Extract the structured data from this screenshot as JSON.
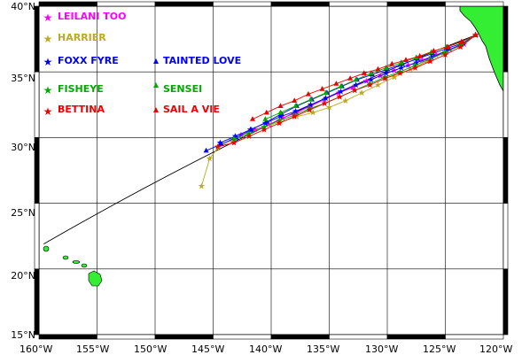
{
  "map": {
    "projection": "plate-carree",
    "lon_range": [
      -160,
      -120
    ],
    "lat_range": [
      15,
      40
    ],
    "grid": true,
    "land_color": "#33ee33",
    "frame_color": "#000000",
    "great_circle_color": "#000000",
    "lat_labels": [
      {
        "lat": 40,
        "text": "40°N"
      },
      {
        "lat": 35,
        "text": "35°N"
      },
      {
        "lat": 30,
        "text": "30°N"
      },
      {
        "lat": 25,
        "text": "25°N"
      },
      {
        "lat": 20,
        "text": "20°N"
      },
      {
        "lat": 15,
        "text": "15°N"
      }
    ],
    "lon_labels": [
      {
        "lon": -160,
        "text": "160°W"
      },
      {
        "lon": -155,
        "text": "155°W"
      },
      {
        "lon": -150,
        "text": "150°W"
      },
      {
        "lon": -145,
        "text": "145°W"
      },
      {
        "lon": -140,
        "text": "140°W"
      },
      {
        "lon": -135,
        "text": "135°W"
      },
      {
        "lon": -130,
        "text": "130°W"
      },
      {
        "lon": -125,
        "text": "125°W"
      },
      {
        "lon": -120,
        "text": "120°W"
      }
    ],
    "great_circle": {
      "from": [
        -122.4,
        37.8
      ],
      "to": [
        -159.6,
        21.9
      ]
    }
  },
  "legend": {
    "entries": [
      {
        "name": "LEILANI TOO",
        "color": "#ff00ff",
        "marker": "star"
      },
      {
        "name": "HARRIER",
        "color": "#bbaa22",
        "marker": "star"
      },
      {
        "name": "FOXX FYRE",
        "color": "#0000ff",
        "marker": "star"
      },
      {
        "name": "TAINTED LOVE",
        "color": "#0000ff",
        "marker": "triangle"
      },
      {
        "name": "FISHEYE",
        "color": "#00aa00",
        "marker": "star"
      },
      {
        "name": "SENSEI",
        "color": "#00aa00",
        "marker": "triangle"
      },
      {
        "name": "BETTINA",
        "color": "#ee0000",
        "marker": "star"
      },
      {
        "name": "SAIL A VIE",
        "color": "#ee0000",
        "marker": "triangle"
      }
    ]
  },
  "chart_data": {
    "type": "scatter",
    "xlabel": "",
    "ylabel": "",
    "xlim": [
      -160,
      -120
    ],
    "ylim": [
      15,
      40
    ],
    "series": [
      {
        "name": "LEILANI TOO",
        "color": "#ff00ff",
        "marker": "star",
        "lon": [
          -122.4,
          -123.4,
          -124.6,
          -125.8,
          -127.0,
          -128.2,
          -129.4,
          -130.6,
          -131.8,
          -133.0,
          -134.2,
          -135.4,
          -136.6,
          -137.8,
          -139.0,
          -140.2,
          -141.4,
          -142.6
        ],
        "lat": [
          37.8,
          37.1,
          36.7,
          36.3,
          35.9,
          35.5,
          35.1,
          34.7,
          34.3,
          33.8,
          33.4,
          32.9,
          32.4,
          31.9,
          31.5,
          31.0,
          30.6,
          30.2
        ]
      },
      {
        "name": "HARRIER",
        "color": "#bbaa22",
        "marker": "star",
        "lon": [
          -122.4,
          -123.8,
          -125.2,
          -126.6,
          -128.0,
          -129.4,
          -130.8,
          -132.2,
          -133.6,
          -135.0,
          -136.4,
          -137.8,
          -139.2,
          -140.6,
          -142.0,
          -143.4,
          -144.6,
          -145.3,
          -146.0
        ],
        "lat": [
          37.8,
          37.0,
          36.4,
          35.8,
          35.2,
          34.6,
          34.0,
          33.4,
          32.8,
          32.3,
          31.9,
          31.6,
          31.2,
          30.8,
          30.3,
          29.8,
          29.2,
          28.4,
          26.3
        ]
      },
      {
        "name": "FOXX FYRE",
        "color": "#0000ff",
        "marker": "star",
        "lon": [
          -122.4,
          -123.6,
          -124.9,
          -126.2,
          -127.5,
          -128.8,
          -130.1,
          -131.4,
          -132.7,
          -134.0,
          -135.3,
          -136.6,
          -137.9,
          -139.2,
          -140.5,
          -141.8,
          -143.1,
          -144.4
        ],
        "lat": [
          37.8,
          37.1,
          36.6,
          36.1,
          35.7,
          35.3,
          34.9,
          34.4,
          34.0,
          33.5,
          33.0,
          32.5,
          32.0,
          31.6,
          31.1,
          30.6,
          30.1,
          29.6
        ]
      },
      {
        "name": "TAINTED LOVE",
        "color": "#0000ff",
        "marker": "triangle",
        "lon": [
          -122.4,
          -123.5,
          -124.8,
          -126.1,
          -127.4,
          -128.7,
          -130.0,
          -131.3,
          -132.6,
          -133.9,
          -135.2,
          -136.5,
          -137.8,
          -139.1,
          -140.4,
          -141.7,
          -143.0,
          -144.3,
          -145.6
        ],
        "lat": [
          37.8,
          37.2,
          36.8,
          36.4,
          36.0,
          35.6,
          35.2,
          34.8,
          34.4,
          33.9,
          33.4,
          32.9,
          32.4,
          31.8,
          31.2,
          30.6,
          30.0,
          29.5,
          29.0
        ]
      },
      {
        "name": "FISHEYE",
        "color": "#00aa00",
        "marker": "star",
        "lon": [
          -122.4,
          -123.7,
          -125.0,
          -126.3,
          -127.6,
          -128.9,
          -130.2,
          -131.5,
          -132.8,
          -134.1,
          -135.4,
          -136.7,
          -138.0,
          -139.3,
          -140.6,
          -141.9,
          -143.2
        ],
        "lat": [
          37.8,
          37.0,
          36.5,
          36.0,
          35.5,
          35.0,
          34.6,
          34.1,
          33.6,
          33.1,
          32.6,
          32.2,
          31.7,
          31.3,
          30.8,
          30.3,
          29.9
        ]
      },
      {
        "name": "SENSEI",
        "color": "#00aa00",
        "marker": "triangle",
        "lon": [
          -122.4,
          -123.6,
          -124.9,
          -126.2,
          -127.5,
          -128.8,
          -130.1,
          -131.4,
          -132.7,
          -134.0,
          -135.3,
          -136.6,
          -137.9,
          -139.2,
          -140.5
        ],
        "lat": [
          37.8,
          37.3,
          36.9,
          36.5,
          36.1,
          35.7,
          35.3,
          34.9,
          34.4,
          33.9,
          33.4,
          32.9,
          32.4,
          31.9,
          31.4
        ]
      },
      {
        "name": "BETTINA",
        "color": "#ee0000",
        "marker": "star",
        "lon": [
          -122.4,
          -123.7,
          -125.0,
          -126.3,
          -127.6,
          -128.9,
          -130.2,
          -131.5,
          -132.8,
          -134.1,
          -135.4,
          -136.7,
          -138.0,
          -139.3,
          -140.6,
          -141.9,
          -143.2,
          -144.6
        ],
        "lat": [
          37.8,
          36.9,
          36.3,
          35.8,
          35.3,
          34.9,
          34.5,
          34.0,
          33.6,
          33.1,
          32.6,
          32.1,
          31.6,
          31.1,
          30.6,
          30.1,
          29.6,
          29.3
        ]
      },
      {
        "name": "SAIL A VIE",
        "color": "#ee0000",
        "marker": "triangle",
        "lon": [
          -122.4,
          -123.6,
          -124.8,
          -126.0,
          -127.2,
          -128.4,
          -129.6,
          -130.8,
          -132.0,
          -133.2,
          -134.4,
          -135.6,
          -136.8,
          -138.0,
          -139.2,
          -140.4,
          -141.6
        ],
        "lat": [
          37.8,
          37.3,
          36.9,
          36.6,
          36.2,
          35.9,
          35.6,
          35.2,
          34.9,
          34.5,
          34.1,
          33.7,
          33.3,
          32.8,
          32.4,
          31.9,
          31.4
        ]
      }
    ]
  }
}
